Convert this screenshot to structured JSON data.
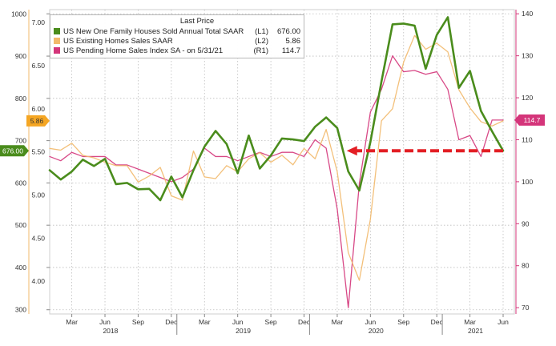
{
  "chart_data": {
    "type": "line",
    "legend": {
      "header": "Last Price",
      "placement": "top-left",
      "entries": [
        {
          "name": "US New One Family Houses Sold Annual Total SAAR",
          "axis": "(L1)",
          "value": "676.00",
          "color": "#4a8c1c"
        },
        {
          "name": "US Existing Homes Sales SAAR",
          "axis": "(L2)",
          "value": "5.86",
          "color": "#f2b96b"
        },
        {
          "name": "US Pending Home Sales Index SA -  on 5/31/21",
          "axis": "(R1)",
          "value": "114.7",
          "color": "#d4357a"
        }
      ]
    },
    "x": [
      "2018-01",
      "2018-02",
      "2018-03",
      "2018-04",
      "2018-05",
      "2018-06",
      "2018-07",
      "2018-08",
      "2018-09",
      "2018-10",
      "2018-11",
      "2018-12",
      "2019-01",
      "2019-02",
      "2019-03",
      "2019-04",
      "2019-05",
      "2019-06",
      "2019-07",
      "2019-08",
      "2019-09",
      "2019-10",
      "2019-11",
      "2019-12",
      "2020-01",
      "2020-02",
      "2020-03",
      "2020-04",
      "2020-05",
      "2020-06",
      "2020-07",
      "2020-08",
      "2020-09",
      "2020-10",
      "2020-11",
      "2020-12",
      "2021-01",
      "2021-02",
      "2021-03",
      "2021-04",
      "2021-05",
      "2021-06"
    ],
    "axes": {
      "L1": {
        "ticks": [
          300,
          400,
          500,
          600,
          700,
          800,
          900,
          1000
        ],
        "ylim": [
          290,
          1010
        ]
      },
      "L2": {
        "ticks": [
          "4.00",
          "4.50",
          "5.00",
          "5.50",
          "6.00",
          "6.50",
          "7.00"
        ],
        "ylim": [
          3.62,
          7.15
        ]
      },
      "R1": {
        "ticks": [
          70,
          80,
          90,
          100,
          110,
          120,
          130,
          140
        ],
        "ylim": [
          68.5,
          141
        ]
      },
      "x_ticks": [
        "Mar",
        "Jun",
        "Sep",
        "Dec",
        "Mar",
        "Jun",
        "Sep",
        "Dec",
        "Mar",
        "Jun",
        "Sep",
        "Dec",
        "Mar",
        "Jun"
      ],
      "x_year_labels": [
        "2018",
        "2019",
        "2020",
        "2021"
      ],
      "grid": true
    },
    "series": [
      {
        "name": "US New One Family Houses Sold Annual Total SAAR",
        "axis": "L1",
        "color": "#4a8c1c",
        "values": [
          630,
          608,
          627,
          655,
          640,
          657,
          597,
          600,
          585,
          586,
          559,
          615,
          566,
          630,
          686,
          723,
          692,
          623,
          712,
          634,
          665,
          705,
          703,
          699,
          733,
          755,
          730,
          627,
          582,
          697,
          840,
          975,
          977,
          972,
          870,
          950,
          992,
          825,
          865,
          770,
          722,
          676
        ]
      },
      {
        "name": "US Existing Homes Sales SAAR",
        "axis": "L2",
        "color": "#f2b96b",
        "values": [
          5.54,
          5.52,
          5.6,
          5.46,
          5.43,
          5.38,
          5.34,
          5.34,
          5.15,
          5.22,
          5.32,
          4.99,
          4.94,
          5.51,
          5.21,
          5.19,
          5.34,
          5.27,
          5.42,
          5.49,
          5.38,
          5.46,
          5.35,
          5.54,
          5.42,
          5.76,
          5.27,
          4.33,
          4.01,
          4.72,
          5.86,
          6.0,
          6.54,
          6.85,
          6.69,
          6.76,
          6.66,
          6.22,
          6.01,
          5.85,
          5.8,
          5.86
        ]
      },
      {
        "name": "US Pending Home Sales Index SA",
        "axis": "R1",
        "color": "#d4357a",
        "values": [
          106,
          105,
          107,
          106,
          106,
          106,
          104,
          104,
          103,
          102,
          101,
          100,
          101,
          103,
          108,
          106,
          106,
          105,
          106,
          107,
          106,
          107,
          107,
          106,
          110,
          108,
          93.5,
          70,
          99.6,
          116.6,
          122,
          130,
          126.2,
          126.5,
          125.6,
          126.2,
          122,
          110,
          111,
          106,
          114.7,
          114.7
        ]
      }
    ],
    "value_tags": [
      {
        "text": "5.86",
        "axis": "L2",
        "value": 5.86,
        "color": "#f5a623",
        "text_color": "#333333"
      },
      {
        "text": "676.00",
        "axis": "L1",
        "value": 676,
        "color": "#4a8c1c",
        "text_color": "#ffffff"
      },
      {
        "text": "114.7",
        "axis": "R1",
        "value": 114.7,
        "color": "#d4357a",
        "text_color": "#ffffff"
      }
    ],
    "annotation": {
      "type": "dashed-arrow",
      "color": "#e31e24",
      "value": 676,
      "axis": "L1",
      "from": "2021-06",
      "to": "2020-04"
    }
  }
}
